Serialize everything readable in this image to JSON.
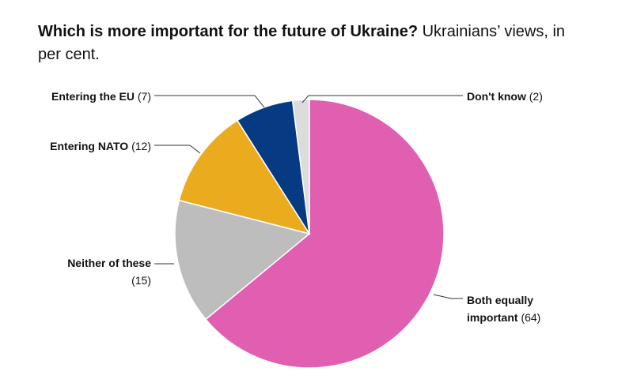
{
  "header": {
    "title_bold": "Which is more important for the future of Ukraine?",
    "title_rest": "Ukrainians’ views, in per cent."
  },
  "chart_data": {
    "type": "pie",
    "title": "Which is more important for the future of Ukraine? Ukrainians’ views, in per cent.",
    "unit": "per cent",
    "slices": [
      {
        "label_lines": [
          "Both equally",
          "important"
        ],
        "value_text": "(64)",
        "value": 64,
        "color": "#e05fb0"
      },
      {
        "label_lines": [
          "Neither of these"
        ],
        "value_text": "(15)",
        "value": 15,
        "color": "#bdbdbd"
      },
      {
        "label_lines": [
          "Entering NATO"
        ],
        "value_text": "(12)",
        "value": 12,
        "color": "#ebab1f"
      },
      {
        "label_lines": [
          "Entering the EU"
        ],
        "value_text": "(7)",
        "value": 7,
        "color": "#063a82"
      },
      {
        "label_lines": [
          "Don't know"
        ],
        "value_text": "(2)",
        "value": 2,
        "color": "#dcdcdc"
      }
    ]
  }
}
